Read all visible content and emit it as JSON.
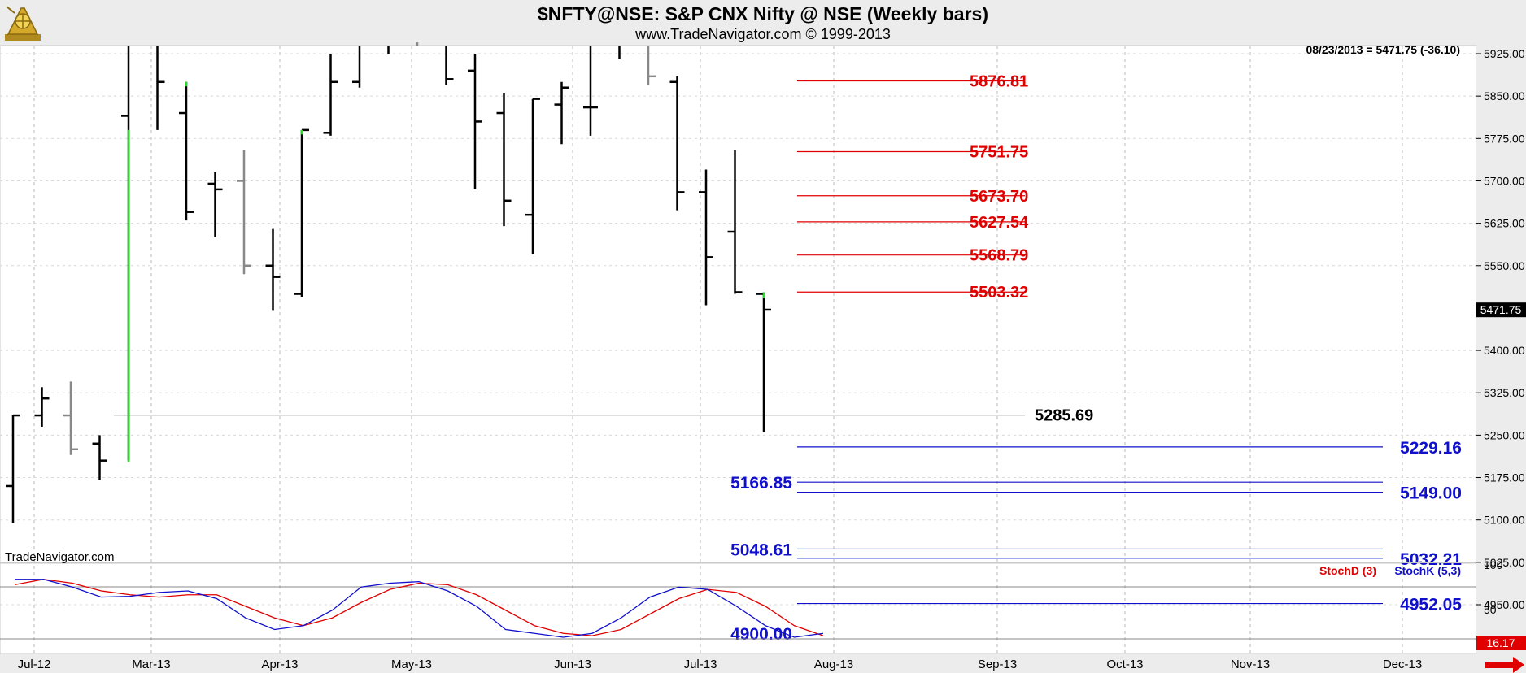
{
  "header": {
    "title": "$NFTY@NSE:  S&P CNX Nifty @ NSE  (Weekly bars)",
    "subtitle": "www.TradeNavigator.com © 1999-2013"
  },
  "chart_data": {
    "type": "ohlc",
    "price_axis": {
      "ticks": [
        "5925.00",
        "5850.00",
        "5775.00",
        "5700.00",
        "5625.00",
        "5550.00",
        "5400.00",
        "5325.00",
        "5250.00",
        "5175.00",
        "5100.00",
        "5025.00",
        "4950.00"
      ],
      "range": [
        4900,
        5960
      ]
    },
    "x_axis": {
      "ticks": [
        "Jul-12",
        "Mar-13",
        "Apr-13",
        "May-13",
        "Jun-13",
        "Jul-13",
        "Aug-13",
        "Sep-13",
        "Oct-13",
        "Nov-13",
        "Dec-13"
      ]
    },
    "last_quote": "08/23/2013 = 5471.75 (-36.10)",
    "last_price_label": "5471.75",
    "bars": [
      {
        "open": 5160,
        "high": 5285,
        "low": 5095,
        "close": 5285,
        "color": "#000000"
      },
      {
        "open": 5285,
        "high": 5335,
        "low": 5265,
        "close": 5315,
        "color": "#000000"
      },
      {
        "open": 5285,
        "high": 5345,
        "low": 5215,
        "close": 5225,
        "color": "#888888"
      },
      {
        "open": 5235,
        "high": 5250,
        "low": 5170,
        "close": 5205,
        "color": "#000000"
      },
      {
        "open": 5815,
        "high": 5960,
        "low": 5205,
        "close": 5960,
        "color": "#000000"
      },
      {
        "open": 5960,
        "high": 5960,
        "low": 5790,
        "close": 5875,
        "color": "#000000"
      },
      {
        "open": 5820,
        "high": 5875,
        "low": 5630,
        "close": 5645,
        "color": "#000000"
      },
      {
        "open": 5695,
        "high": 5715,
        "low": 5600,
        "close": 5685,
        "color": "#000000"
      },
      {
        "open": 5700,
        "high": 5755,
        "low": 5535,
        "close": 5550,
        "color": "#888888"
      },
      {
        "open": 5550,
        "high": 5615,
        "low": 5470,
        "close": 5530,
        "color": "#000000"
      },
      {
        "open": 5500,
        "high": 5790,
        "low": 5495,
        "close": 5790,
        "color": "#000000"
      },
      {
        "open": 5785,
        "high": 5925,
        "low": 5780,
        "close": 5875,
        "color": "#000000"
      },
      {
        "open": 5875,
        "high": 5960,
        "low": 5865,
        "close": 5960,
        "color": "#000000"
      },
      {
        "open": 5960,
        "high": 5960,
        "low": 5925,
        "close": 5960,
        "color": "#000000"
      },
      {
        "open": 5960,
        "high": 5960,
        "low": 5945,
        "close": 5960,
        "color": "#888888"
      },
      {
        "open": 5960,
        "high": 5960,
        "low": 5870,
        "close": 5880,
        "color": "#000000"
      },
      {
        "open": 5895,
        "high": 5925,
        "low": 5685,
        "close": 5805,
        "color": "#000000"
      },
      {
        "open": 5820,
        "high": 5855,
        "low": 5620,
        "close": 5665,
        "color": "#000000"
      },
      {
        "open": 5640,
        "high": 5845,
        "low": 5570,
        "close": 5845,
        "color": "#000000"
      },
      {
        "open": 5835,
        "high": 5875,
        "low": 5765,
        "close": 5865,
        "color": "#000000"
      },
      {
        "open": 5830,
        "high": 5960,
        "low": 5780,
        "close": 5830,
        "color": "#000000"
      },
      {
        "open": 5960,
        "high": 5960,
        "low": 5915,
        "close": 5960,
        "color": "#000000"
      },
      {
        "open": 5960,
        "high": 5960,
        "low": 5870,
        "close": 5885,
        "color": "#888888"
      },
      {
        "open": 5875,
        "high": 5885,
        "low": 5648,
        "close": 5680,
        "color": "#000000"
      },
      {
        "open": 5680,
        "high": 5720,
        "low": 5480,
        "close": 5565,
        "color": "#000000"
      },
      {
        "open": 5610,
        "high": 5755,
        "low": 5500,
        "close": 5503,
        "color": "#000000"
      },
      {
        "open": 5500,
        "high": 5503,
        "low": 5255,
        "close": 5472,
        "color": "#000000"
      }
    ],
    "red_levels": [
      {
        "value": 5876.81,
        "label": "5876.81"
      },
      {
        "value": 5751.75,
        "label": "5751.75"
      },
      {
        "value": 5673.7,
        "label": "5673.70"
      },
      {
        "value": 5627.54,
        "label": "5627.54"
      },
      {
        "value": 5568.79,
        "label": "5568.79"
      },
      {
        "value": 5503.32,
        "label": "5503.32"
      }
    ],
    "black_level": {
      "value": 5285.69,
      "label": "5285.69"
    },
    "blue_levels_right": [
      {
        "value": 5229.16,
        "label": "5229.16"
      },
      {
        "value": 5149.0,
        "label": "5149.00"
      },
      {
        "value": 5032.21,
        "label": "5032.21"
      },
      {
        "value": 4952.05,
        "label": "4952.05"
      }
    ],
    "blue_levels_left": [
      {
        "value": 5166.85,
        "label": "5166.85"
      },
      {
        "value": 5048.61,
        "label": "5048.61"
      },
      {
        "value": 4900.0,
        "label": "4900.00"
      }
    ],
    "stochastic": {
      "labels": {
        "d": "StochD (3)",
        "k": "StochK (5,3)"
      },
      "ticks": [
        "100",
        "50"
      ],
      "last_value": "16.17",
      "stoch_k": [
        95,
        95,
        85,
        72,
        73,
        78,
        80,
        70,
        45,
        30,
        35,
        55,
        85,
        90,
        92,
        80,
        60,
        30,
        25,
        20,
        25,
        45,
        72,
        85,
        82,
        60,
        35,
        20,
        25
      ],
      "stoch_d": [
        88,
        95,
        90,
        80,
        75,
        72,
        75,
        75,
        60,
        45,
        35,
        45,
        65,
        82,
        90,
        88,
        75,
        55,
        35,
        25,
        22,
        30,
        50,
        70,
        82,
        78,
        60,
        35,
        22
      ]
    }
  },
  "footer": {
    "watermark": "TradeNavigator.com"
  }
}
